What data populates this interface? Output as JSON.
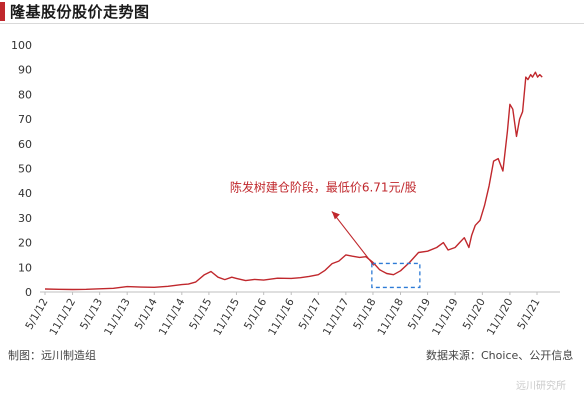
{
  "header": {
    "title": "隆基股份股价走势图"
  },
  "footer": {
    "credit": "制图：远川制造组",
    "source": "数据来源：Choice、公开信息",
    "watermark": "远川研究所"
  },
  "colors": {
    "accent": "#c0282d",
    "line": "#c0282d",
    "highlight": "#2e7bd6",
    "axis": "#bfbfbf"
  },
  "chart_data": {
    "type": "line",
    "title": "隆基股份股价走势图",
    "xlabel": "",
    "ylabel": "",
    "ylim": [
      0,
      100
    ],
    "yticks": [
      0,
      10,
      20,
      30,
      40,
      50,
      60,
      70,
      80,
      90,
      100
    ],
    "xticks": [
      "5/1/12",
      "11/1/12",
      "5/1/13",
      "11/1/13",
      "5/1/14",
      "11/1/14",
      "5/1/15",
      "11/1/15",
      "5/1/16",
      "11/1/16",
      "5/1/17",
      "11/1/17",
      "5/1/18",
      "11/1/18",
      "5/1/19",
      "11/1/19",
      "5/1/20",
      "11/1/20",
      "5/1/21"
    ],
    "grid": false,
    "series": [
      {
        "x": [
          "2012-05-01",
          "2012-08-01",
          "2012-11-01",
          "2013-02-01",
          "2013-05-01",
          "2013-08-01",
          "2013-11-01",
          "2014-02-01",
          "2014-05-01",
          "2014-08-01",
          "2014-11-01",
          "2014-12-15",
          "2015-02-01",
          "2015-04-01",
          "2015-05-15",
          "2015-07-01",
          "2015-08-15",
          "2015-10-01",
          "2015-11-01",
          "2016-01-01",
          "2016-03-01",
          "2016-05-01",
          "2016-08-01",
          "2016-11-01",
          "2017-01-01",
          "2017-03-01",
          "2017-05-01",
          "2017-06-15",
          "2017-08-01",
          "2017-09-15",
          "2017-11-01",
          "2017-12-15",
          "2018-02-01",
          "2018-03-15",
          "2018-05-01",
          "2018-06-15",
          "2018-08-01",
          "2018-09-15",
          "2018-11-01",
          "2019-01-01",
          "2019-03-01",
          "2019-05-01",
          "2019-07-01",
          "2019-08-15",
          "2019-09-15",
          "2019-11-01",
          "2019-12-01",
          "2020-01-01",
          "2020-02-01",
          "2020-02-20",
          "2020-03-15",
          "2020-04-15",
          "2020-05-15",
          "2020-06-15",
          "2020-07-15",
          "2020-08-15",
          "2020-09-15",
          "2020-10-15",
          "2020-11-01",
          "2020-11-20",
          "2020-12-15",
          "2021-01-05",
          "2021-01-25",
          "2021-02-15",
          "2021-03-01",
          "2021-03-20",
          "2021-04-01",
          "2021-04-20",
          "2021-05-05",
          "2021-05-20",
          "2021-06-05"
        ],
        "values": [
          1.2,
          1.1,
          1.0,
          1.1,
          1.3,
          1.5,
          2.2,
          2.0,
          1.9,
          2.3,
          3.0,
          3.2,
          4.0,
          7.0,
          8.3,
          6.0,
          5.0,
          6.0,
          5.5,
          4.6,
          5.1,
          4.8,
          5.6,
          5.5,
          5.8,
          6.3,
          7.0,
          8.8,
          11.5,
          12.5,
          15.0,
          14.5,
          14.0,
          14.3,
          12.0,
          9.0,
          7.5,
          7.0,
          8.6,
          12.0,
          16.0,
          16.5,
          18.0,
          20.0,
          17.0,
          18.0,
          20.0,
          22.0,
          18.0,
          23.0,
          27.0,
          29.0,
          35.0,
          43.0,
          53.0,
          54.0,
          49.0,
          65.0,
          76.0,
          74.0,
          63.0,
          70.0,
          73.0,
          87.0,
          86.0,
          88.0,
          87.0,
          89.0,
          87.0,
          88.0,
          87.0
        ]
      }
    ],
    "annotations": [
      {
        "text": "陈发树建仓阶段，最低价6.71元/股",
        "x": "2018-10-01",
        "y": 6.71
      }
    ]
  }
}
